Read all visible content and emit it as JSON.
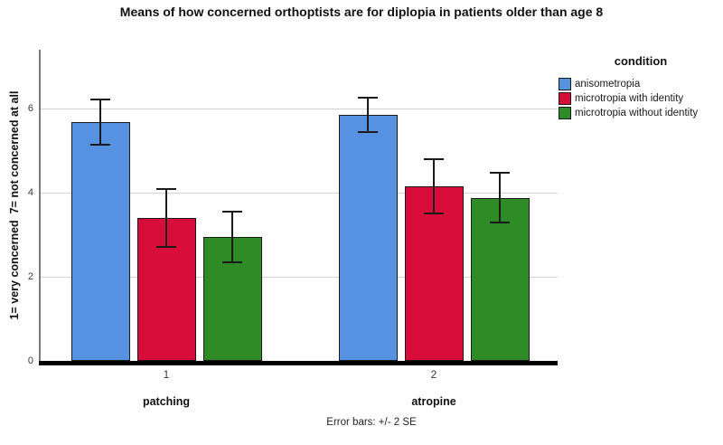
{
  "chart_data": {
    "type": "bar",
    "title": "Means of how concerned orthoptists are for diplopia in patients older than age 8",
    "ylabel": "1= very concerned  7= not concerned at all",
    "xlabel": "",
    "legend_title": "condition",
    "legend_position": "right",
    "footnote": "Error bars: +/- 2 SE",
    "grid": true,
    "ylim": [
      0,
      7.4
    ],
    "yticks": [
      0,
      2,
      4,
      6
    ],
    "groups": [
      {
        "tick": "1",
        "label": "patching"
      },
      {
        "tick": "2",
        "label": "atropine"
      }
    ],
    "series": [
      {
        "name": "anisometropia",
        "color": "#5792E0",
        "means": [
          5.68,
          5.85
        ],
        "error_2se": [
          0.53,
          0.4
        ]
      },
      {
        "name": "microtropia with identity",
        "color": "#D80D3A",
        "means": [
          3.4,
          4.15
        ],
        "error_2se": [
          0.69,
          0.64
        ]
      },
      {
        "name": "microtropia without identity",
        "color": "#2E8B26",
        "means": [
          2.95,
          3.88
        ],
        "error_2se": [
          0.61,
          0.59
        ]
      }
    ]
  },
  "colors": {
    "background": "#FFFFFF",
    "gridline": "#D2D2D2",
    "y_axis_line": "#7A7A7A",
    "baseline": "#000000",
    "bar_border": "#1A1A1A",
    "error_bar": "#1A1A1A",
    "text": "#111111",
    "tick_label": "#3A3A3A"
  }
}
